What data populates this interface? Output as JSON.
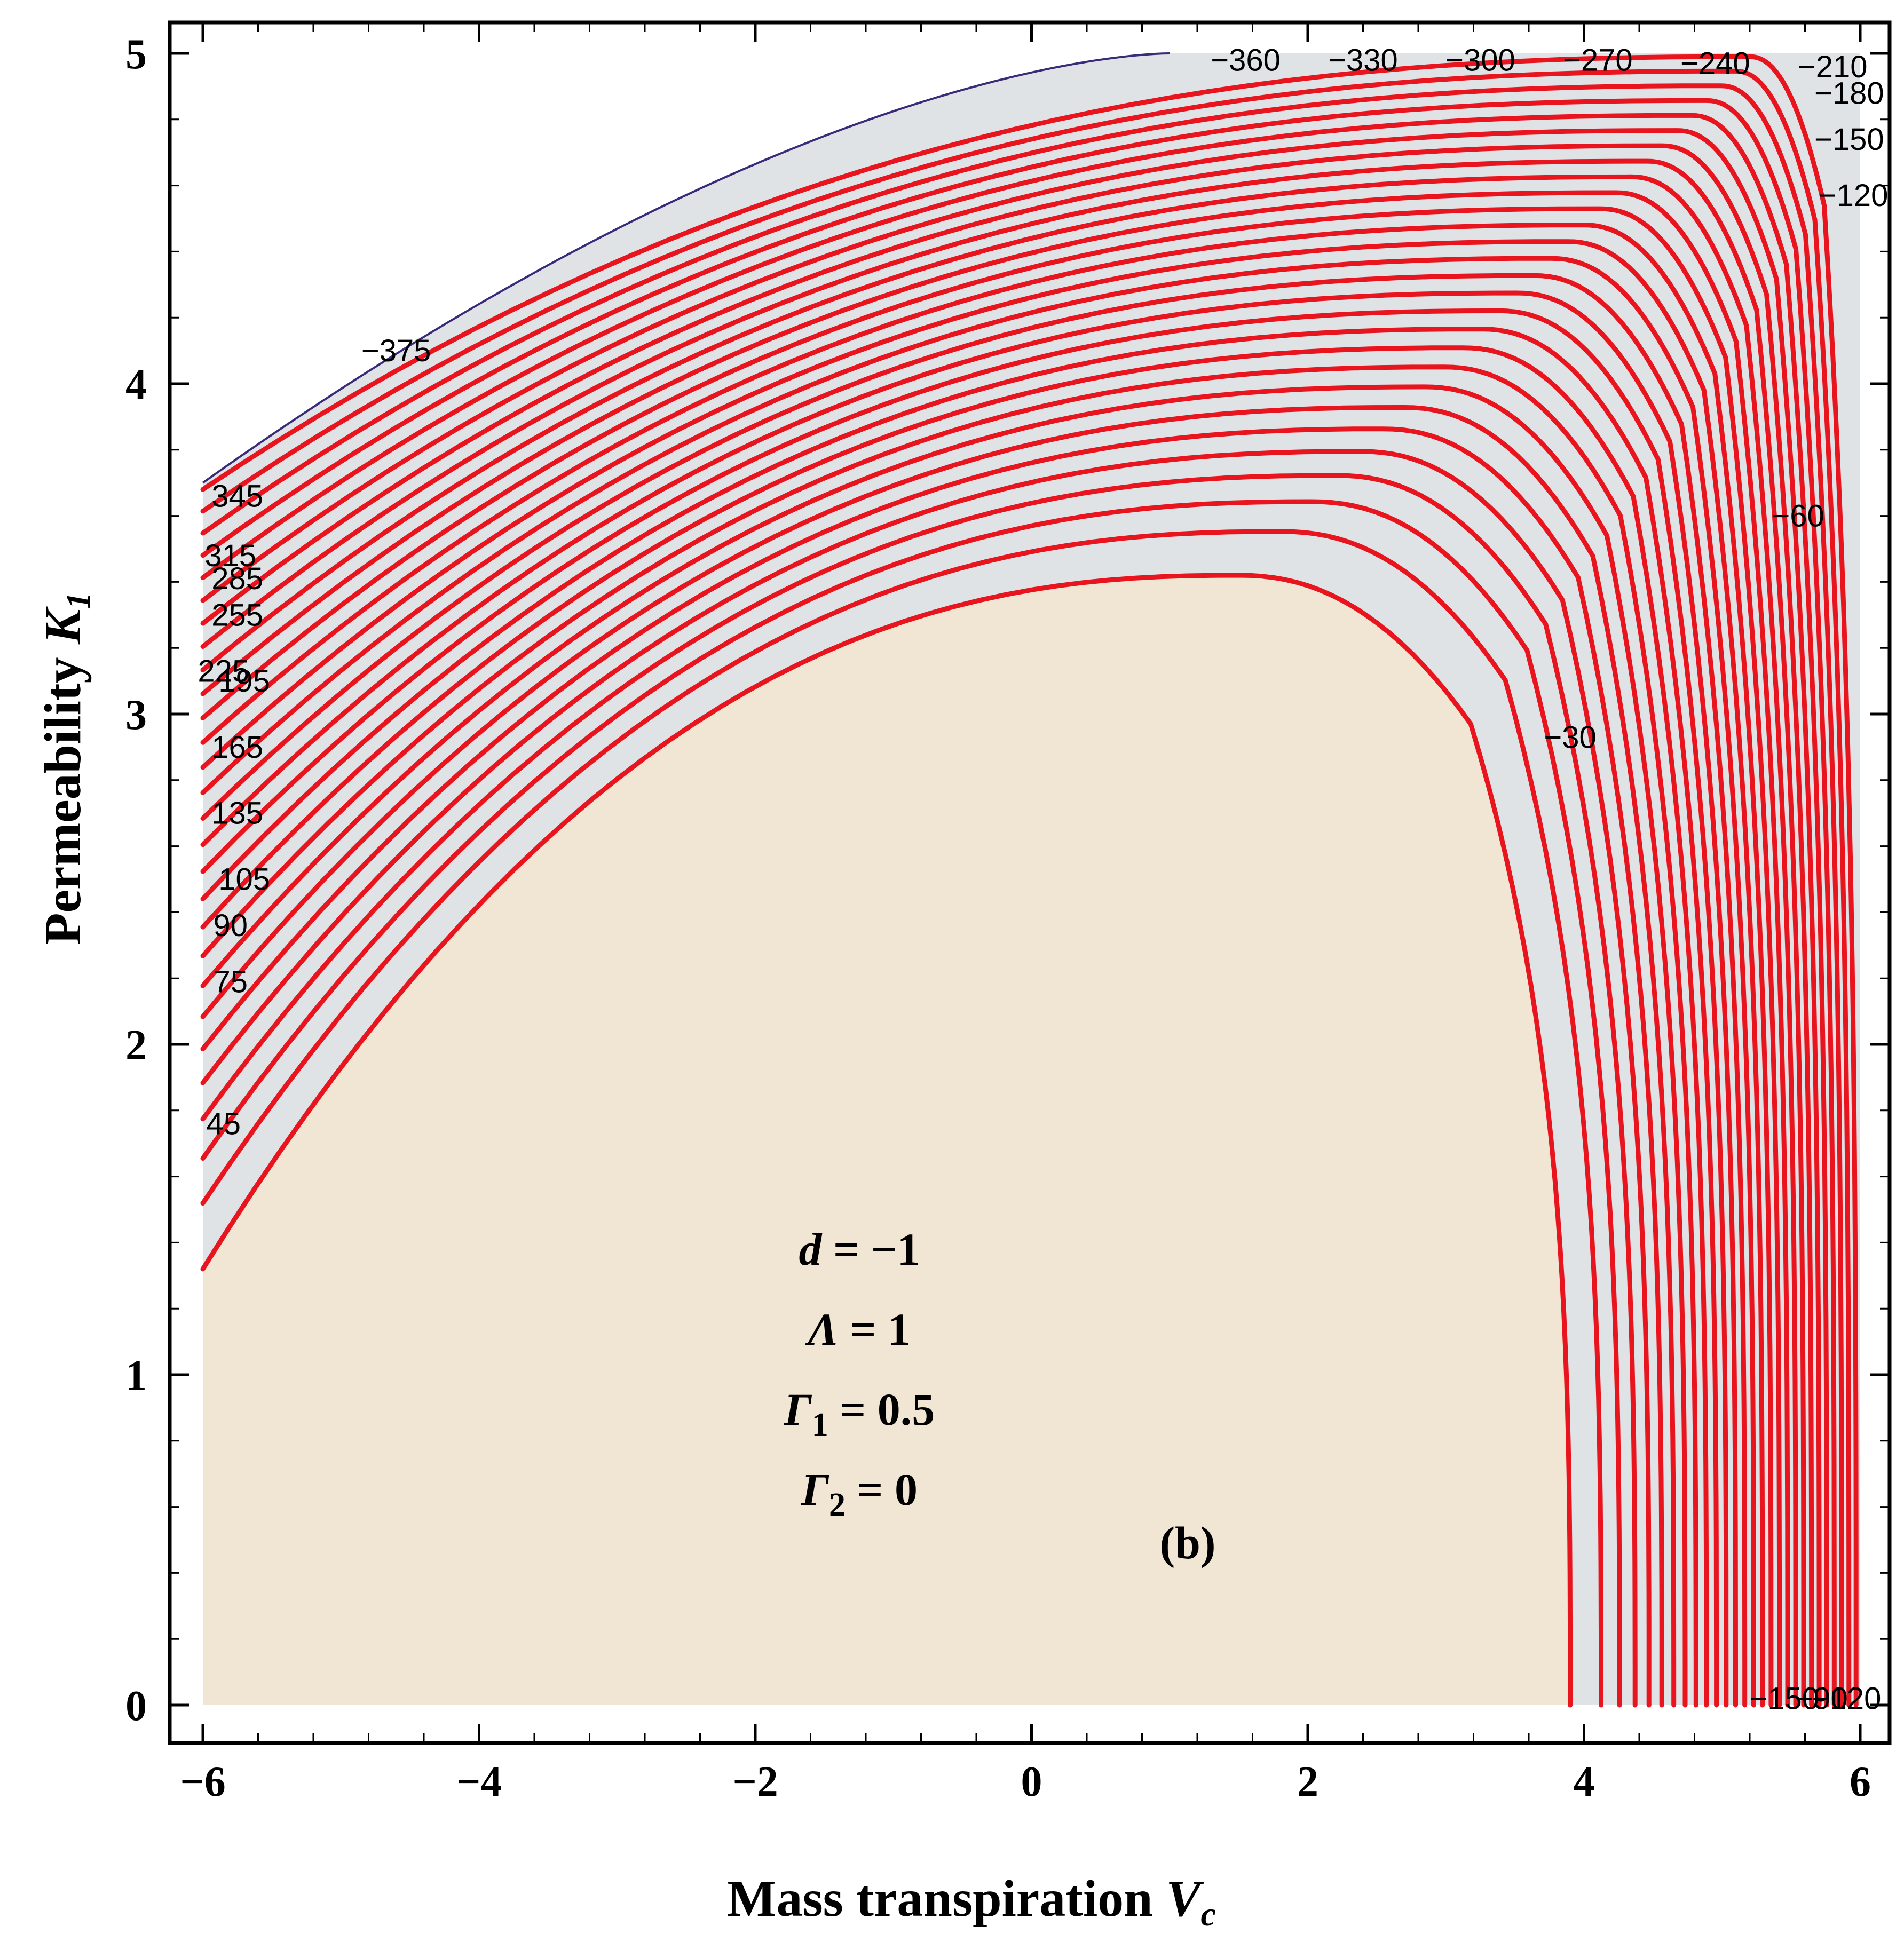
{
  "chart_data": {
    "type": "contour",
    "xlabel_main": "Mass transpiration ",
    "xlabel_var": "V",
    "xlabel_sub": "c",
    "ylabel_main": "Permeability ",
    "ylabel_var": "K",
    "ylabel_sub": "1",
    "xlim": [
      -6,
      6
    ],
    "ylim": [
      0,
      5
    ],
    "x_ticks": [
      -6,
      -4,
      -2,
      0,
      2,
      4,
      6
    ],
    "x_tick_labels": [
      "−6",
      "−4",
      "−2",
      "0",
      "2",
      "4",
      "6"
    ],
    "y_ticks": [
      0,
      1,
      2,
      3,
      4,
      5
    ],
    "y_tick_labels": [
      "0",
      "1",
      "2",
      "3",
      "4",
      "5"
    ],
    "contour_levels": [
      -375,
      -360,
      -345,
      -330,
      -315,
      -300,
      -285,
      -270,
      -255,
      -240,
      -225,
      -210,
      -195,
      -180,
      -165,
      -150,
      -135,
      -120,
      -105,
      -90,
      -75,
      -60,
      -45,
      -30
    ],
    "contour_labels": [
      {
        "text": "−360",
        "x": 1.55,
        "y": 4.98
      },
      {
        "text": "−330",
        "x": 2.4,
        "y": 4.98
      },
      {
        "text": "−300",
        "x": 3.25,
        "y": 4.98
      },
      {
        "text": "−270",
        "x": 4.1,
        "y": 4.98
      },
      {
        "text": "−240",
        "x": 4.95,
        "y": 4.97
      },
      {
        "text": "−210",
        "x": 5.8,
        "y": 4.96
      },
      {
        "text": "−180",
        "x": 5.92,
        "y": 4.88
      },
      {
        "text": "−150",
        "x": 5.92,
        "y": 4.74
      },
      {
        "text": "−120",
        "x": 5.95,
        "y": 4.57
      },
      {
        "text": "−60",
        "x": 5.55,
        "y": 3.6
      },
      {
        "text": "−30",
        "x": 3.9,
        "y": 2.93
      },
      {
        "text": "−375",
        "x": -4.6,
        "y": 4.1
      },
      {
        "text": "345",
        "x": -5.75,
        "y": 3.66
      },
      {
        "text": "315",
        "x": -5.8,
        "y": 3.48
      },
      {
        "text": "285",
        "x": -5.75,
        "y": 3.41
      },
      {
        "text": "255",
        "x": -5.75,
        "y": 3.3
      },
      {
        "text": "225",
        "x": -5.85,
        "y": 3.13
      },
      {
        "text": "195",
        "x": -5.7,
        "y": 3.1
      },
      {
        "text": "165",
        "x": -5.75,
        "y": 2.9
      },
      {
        "text": "135",
        "x": -5.75,
        "y": 2.7
      },
      {
        "text": "105",
        "x": -5.7,
        "y": 2.5
      },
      {
        "text": "90",
        "x": -5.8,
        "y": 2.36
      },
      {
        "text": "75",
        "x": -5.8,
        "y": 2.19
      },
      {
        "text": "45",
        "x": -5.85,
        "y": 1.76
      },
      {
        "text": "−150",
        "x": 5.45,
        "y": 0.02
      },
      {
        "text": "−90",
        "x": 5.72,
        "y": 0.02
      },
      {
        "text": "−120",
        "x": 5.9,
        "y": 0.02
      }
    ],
    "annotations": [
      {
        "var": "d",
        "sub": "",
        "rest": " = −1"
      },
      {
        "var": "Λ",
        "sub": "",
        "rest": " = 1"
      },
      {
        "var": "Γ",
        "sub": "1",
        "rest": " = 0.5"
      },
      {
        "var": "Γ",
        "sub": "2",
        "rest": " = 0"
      }
    ],
    "panel_label": "(b)",
    "colors": {
      "contour_line": "#e8141e",
      "region_inner": "#f1e5d3",
      "region_outer": "#dfe3e6",
      "boundary_edge": "#3a2a7a"
    }
  }
}
